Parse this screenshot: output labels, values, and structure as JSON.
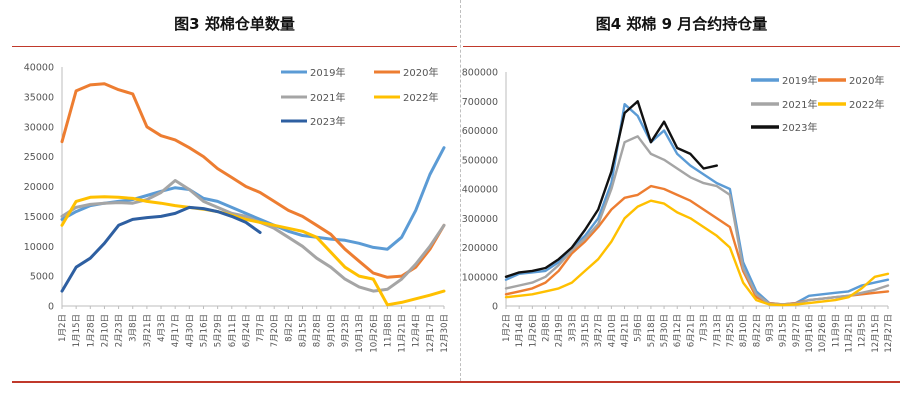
{
  "chart_data": [
    {
      "type": "line",
      "title": "图3 郑棉仓单数量",
      "ylim": [
        0,
        40000
      ],
      "yticks": [
        0,
        5000,
        10000,
        15000,
        20000,
        25000,
        30000,
        35000,
        40000
      ],
      "xticks": [
        "1月2日",
        "1月15日",
        "1月28日",
        "2月10日",
        "2月23日",
        "3月8日",
        "3月21日",
        "4月3日",
        "4月17日",
        "4月30日",
        "5月16日",
        "5月29日",
        "6月11日",
        "6月24日",
        "7月7日",
        "7月20日",
        "8月2日",
        "8月15日",
        "8月28日",
        "9月10日",
        "9月23日",
        "10月13日",
        "10月26日",
        "11月8日",
        "11月21日",
        "12月4日",
        "12月17日",
        "12月30日"
      ],
      "legend": [
        "2019年",
        "2020年",
        "2021年",
        "2022年",
        "2023年"
      ],
      "grid": false,
      "series": [
        {
          "name": "2019年",
          "color": "#5b9bd5",
          "x": [
            0,
            1,
            2,
            3,
            4,
            5,
            6,
            7,
            8,
            9,
            10,
            11,
            12,
            13,
            14,
            15,
            16,
            17,
            18,
            19,
            20,
            21,
            22,
            23,
            24,
            25,
            26,
            27
          ],
          "values": [
            14500,
            15800,
            16800,
            17200,
            17500,
            17800,
            18500,
            19200,
            19800,
            19500,
            18000,
            17500,
            16500,
            15500,
            14500,
            13500,
            12500,
            11800,
            11500,
            11200,
            11000,
            10500,
            9800,
            9500,
            11500,
            16000,
            22000,
            26500
          ]
        },
        {
          "name": "2020年",
          "color": "#ed7d31",
          "x": [
            0,
            1,
            2,
            3,
            4,
            5,
            6,
            7,
            8,
            9,
            10,
            11,
            12,
            13,
            14,
            15,
            16,
            17,
            18,
            19,
            20,
            21,
            22,
            23,
            24,
            25,
            26,
            27
          ],
          "values": [
            27500,
            36000,
            37000,
            37200,
            36200,
            35500,
            30000,
            28500,
            27800,
            26500,
            25000,
            23000,
            21500,
            20000,
            19000,
            17500,
            16000,
            15000,
            13500,
            12000,
            9500,
            7500,
            5500,
            4800,
            5000,
            6500,
            9500,
            13500
          ]
        },
        {
          "name": "2021年",
          "color": "#a5a5a5",
          "x": [
            0,
            1,
            2,
            3,
            4,
            5,
            6,
            7,
            8,
            9,
            10,
            11,
            12,
            13,
            14,
            15,
            16,
            17,
            18,
            19,
            20,
            21,
            22,
            23,
            24,
            25,
            26,
            27
          ],
          "values": [
            15000,
            16500,
            17000,
            17200,
            17300,
            17200,
            17800,
            19000,
            21000,
            19500,
            17500,
            16500,
            15500,
            15000,
            14000,
            13000,
            11500,
            10000,
            8000,
            6500,
            4500,
            3200,
            2500,
            2800,
            4500,
            7000,
            10000,
            13500
          ]
        },
        {
          "name": "2022年",
          "color": "#ffc000",
          "x": [
            0,
            1,
            2,
            3,
            4,
            5,
            6,
            7,
            8,
            9,
            10,
            11,
            12,
            13,
            14,
            15,
            16,
            17,
            18,
            19,
            20,
            21,
            22,
            23,
            24,
            25,
            26,
            27
          ],
          "values": [
            13500,
            17500,
            18200,
            18300,
            18200,
            18000,
            17500,
            17200,
            16800,
            16500,
            16200,
            15800,
            15200,
            14500,
            14000,
            13500,
            13000,
            12500,
            11500,
            9000,
            6500,
            5000,
            4500,
            200,
            600,
            1200,
            1800,
            2500
          ]
        },
        {
          "name": "2023年",
          "color": "#2e5fa1",
          "x": [
            0,
            1,
            2,
            3,
            4,
            5,
            6,
            7,
            8,
            9,
            10,
            11,
            12,
            13,
            14
          ],
          "values": [
            2500,
            6500,
            8000,
            10500,
            13500,
            14500,
            14800,
            15000,
            15500,
            16500,
            16300,
            15800,
            15000,
            14000,
            12300
          ]
        }
      ]
    },
    {
      "type": "line",
      "title": "图4 郑棉 9 月合约持仓量",
      "ylim": [
        0,
        800000
      ],
      "yticks": [
        0,
        100000,
        200000,
        300000,
        400000,
        500000,
        600000,
        700000,
        800000
      ],
      "xticks": [
        "1月2日",
        "1月14日",
        "1月26日",
        "2月8日",
        "2月19日",
        "3月3日",
        "3月15日",
        "3月27日",
        "4月10日",
        "4月21日",
        "5月6日",
        "5月18日",
        "5月30日",
        "6月12日",
        "6月21日",
        "7月3日",
        "7月13日",
        "7月25日",
        "8月10日",
        "8月22日",
        "9月3日",
        "9月15日",
        "9月27日",
        "10月16日",
        "10月26日",
        "11月9日",
        "11月21日",
        "12月5日",
        "12月15日",
        "12月27日"
      ],
      "legend": [
        "2019年",
        "2020年",
        "2021年",
        "2022年",
        "2023年"
      ],
      "grid": false,
      "series": [
        {
          "name": "2019年",
          "color": "#5b9bd5",
          "x": [
            0,
            1,
            2,
            3,
            4,
            5,
            6,
            7,
            8,
            9,
            10,
            11,
            12,
            13,
            14,
            15,
            16,
            17,
            18,
            19,
            20,
            21,
            22,
            23,
            24,
            25,
            26,
            27,
            28,
            29
          ],
          "values": [
            90000,
            110000,
            115000,
            120000,
            150000,
            200000,
            240000,
            300000,
            420000,
            690000,
            650000,
            560000,
            600000,
            520000,
            480000,
            450000,
            420000,
            400000,
            150000,
            50000,
            10000,
            5000,
            10000,
            35000,
            40000,
            45000,
            50000,
            70000,
            80000,
            90000
          ]
        },
        {
          "name": "2020年",
          "color": "#ed7d31",
          "x": [
            0,
            1,
            2,
            3,
            4,
            5,
            6,
            7,
            8,
            9,
            10,
            11,
            12,
            13,
            14,
            15,
            16,
            17,
            18,
            19,
            20,
            21,
            22,
            23,
            24,
            25,
            26,
            27,
            28,
            29
          ],
          "values": [
            40000,
            50000,
            60000,
            80000,
            120000,
            180000,
            220000,
            270000,
            330000,
            370000,
            380000,
            410000,
            400000,
            380000,
            360000,
            330000,
            300000,
            270000,
            120000,
            30000,
            10000,
            5000,
            10000,
            20000,
            25000,
            30000,
            35000,
            40000,
            45000,
            50000
          ]
        },
        {
          "name": "2021年",
          "color": "#a5a5a5",
          "x": [
            0,
            1,
            2,
            3,
            4,
            5,
            6,
            7,
            8,
            9,
            10,
            11,
            12,
            13,
            14,
            15,
            16,
            17,
            18,
            19,
            20,
            21,
            22,
            23,
            24,
            25,
            26,
            27,
            28,
            29
          ],
          "values": [
            60000,
            70000,
            80000,
            100000,
            140000,
            190000,
            230000,
            280000,
            400000,
            560000,
            580000,
            520000,
            500000,
            470000,
            440000,
            420000,
            410000,
            380000,
            130000,
            40000,
            8000,
            5000,
            8000,
            20000,
            25000,
            30000,
            35000,
            45000,
            55000,
            70000
          ]
        },
        {
          "name": "2022年",
          "color": "#ffc000",
          "x": [
            0,
            1,
            2,
            3,
            4,
            5,
            6,
            7,
            8,
            9,
            10,
            11,
            12,
            13,
            14,
            15,
            16,
            17,
            18,
            19,
            20,
            21,
            22,
            23,
            24,
            25,
            26,
            27,
            28,
            29
          ],
          "values": [
            30000,
            35000,
            40000,
            50000,
            60000,
            80000,
            120000,
            160000,
            220000,
            300000,
            340000,
            360000,
            350000,
            320000,
            300000,
            270000,
            240000,
            200000,
            80000,
            20000,
            5000,
            3000,
            5000,
            10000,
            15000,
            20000,
            30000,
            60000,
            100000,
            110000
          ]
        },
        {
          "name": "2023年",
          "color": "#111111",
          "x": [
            0,
            1,
            2,
            3,
            4,
            5,
            6,
            7,
            8,
            9,
            10,
            11,
            12,
            13,
            14,
            15,
            16
          ],
          "values": [
            100000,
            115000,
            120000,
            130000,
            160000,
            200000,
            260000,
            330000,
            460000,
            660000,
            700000,
            560000,
            630000,
            540000,
            520000,
            470000,
            480000
          ]
        }
      ]
    }
  ]
}
